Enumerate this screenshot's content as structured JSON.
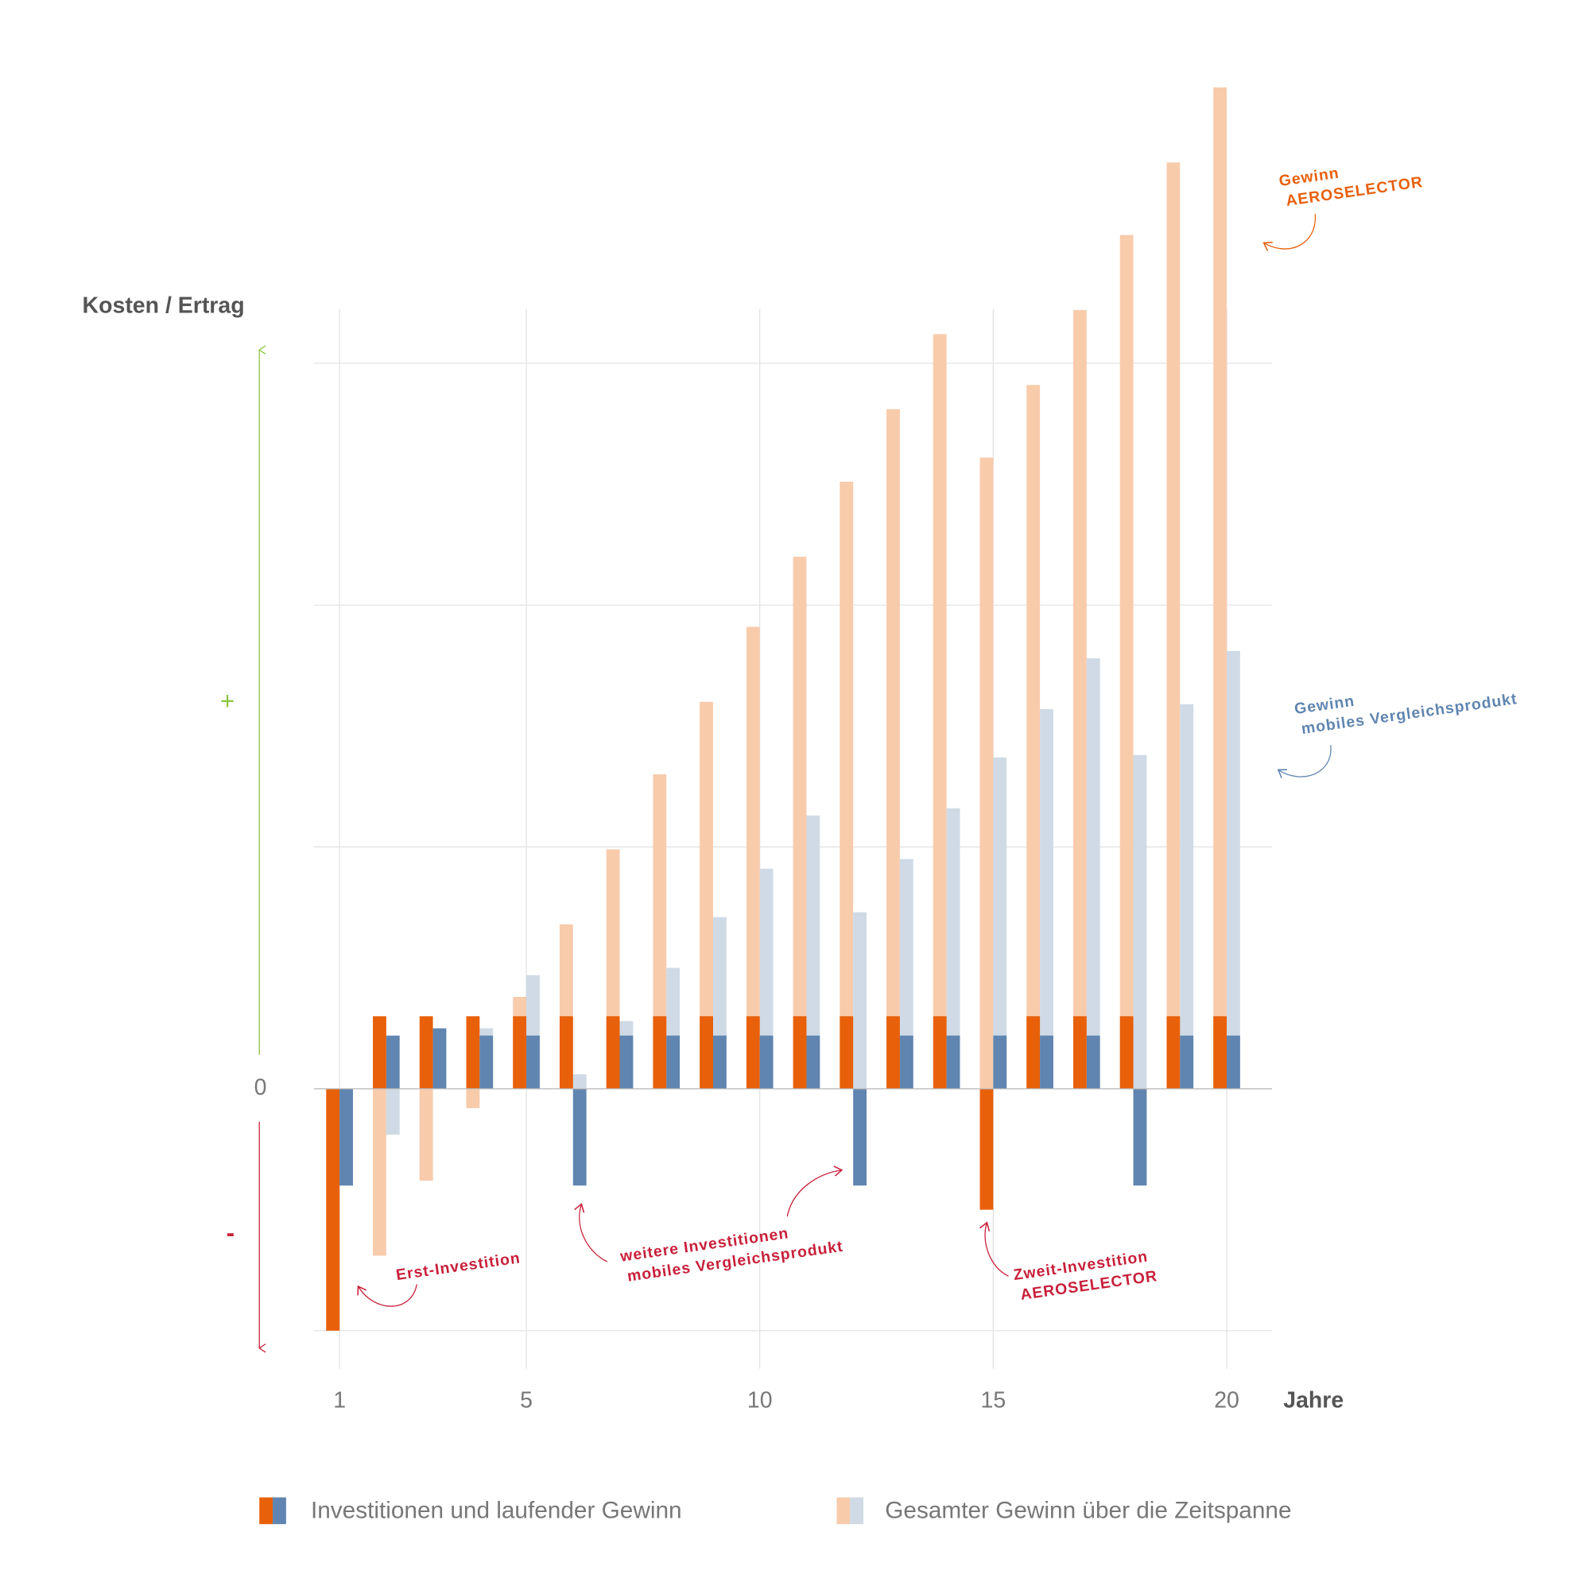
{
  "chart_data": {
    "type": "bar",
    "y_label": "Kosten / Ertrag",
    "x_label": "Jahre",
    "plus_label": "+",
    "minus_label": "-",
    "xlim": [
      0.45,
      20.97
    ],
    "xticks": [
      1,
      5,
      10,
      15,
      20
    ],
    "ylim": [
      -10,
      41.4
    ],
    "yticks": [
      0
    ],
    "y_gridlines": [
      -10,
      10,
      20,
      30
    ],
    "grid": true,
    "x": [
      1,
      2,
      3,
      4,
      5,
      6,
      7,
      8,
      9,
      10,
      11,
      12,
      13,
      14,
      15,
      16,
      17,
      18,
      19,
      20
    ],
    "series": [
      {
        "name": "Gesamter Gewinn über die Zeitspanne",
        "bars": [
          {
            "color": "#f8cbab",
            "values": [
              -10,
              -6.9,
              -3.8,
              -0.8,
              3.8,
              6.8,
              9.9,
              13.0,
              16.0,
              19.1,
              22.0,
              25.1,
              28.1,
              31.2,
              26.1,
              29.1,
              32.2,
              35.3,
              38.3,
              41.4
            ]
          },
          {
            "color": "#cfdae6",
            "values": [
              -4,
              -1.9,
              0.3,
              2.5,
              4.7,
              0.6,
              2.8,
              5.0,
              7.1,
              9.1,
              11.3,
              7.3,
              9.5,
              11.6,
              13.7,
              15.7,
              17.8,
              13.8,
              15.9,
              18.1
            ]
          }
        ]
      },
      {
        "name": "Investitionen und laufender Gewinn",
        "bars": [
          {
            "color": "#e8600a",
            "values": [
              -10,
              3,
              3,
              3,
              3,
              3,
              3,
              3,
              3,
              3,
              3,
              3,
              3,
              3,
              -5,
              3,
              3,
              3,
              3,
              3
            ]
          },
          {
            "color": "#5f85b0",
            "values": [
              -4,
              2.2,
              2.5,
              2.2,
              2.2,
              -4,
              2.2,
              2.2,
              2.2,
              2.2,
              2.2,
              -4,
              2.2,
              2.2,
              2.2,
              2.2,
              2.2,
              -4,
              2.2,
              2.2
            ]
          }
        ]
      }
    ],
    "annotations": [
      {
        "lines": [
          "Gewinn",
          "AEROSELECTOR"
        ],
        "color": "#e8600a"
      },
      {
        "lines": [
          "Gewinn",
          "mobiles Vergleichsprodukt"
        ],
        "color": "#5f85b0"
      },
      {
        "lines": [
          "Erst-Investition"
        ],
        "color": "#c8203a"
      },
      {
        "lines": [
          "weitere Investitionen",
          "mobiles Vergleichsprodukt"
        ],
        "color": "#c8203a"
      },
      {
        "lines": [
          "Zweit-Investition",
          "AEROSELECTOR"
        ],
        "color": "#c8203a"
      }
    ]
  }
}
